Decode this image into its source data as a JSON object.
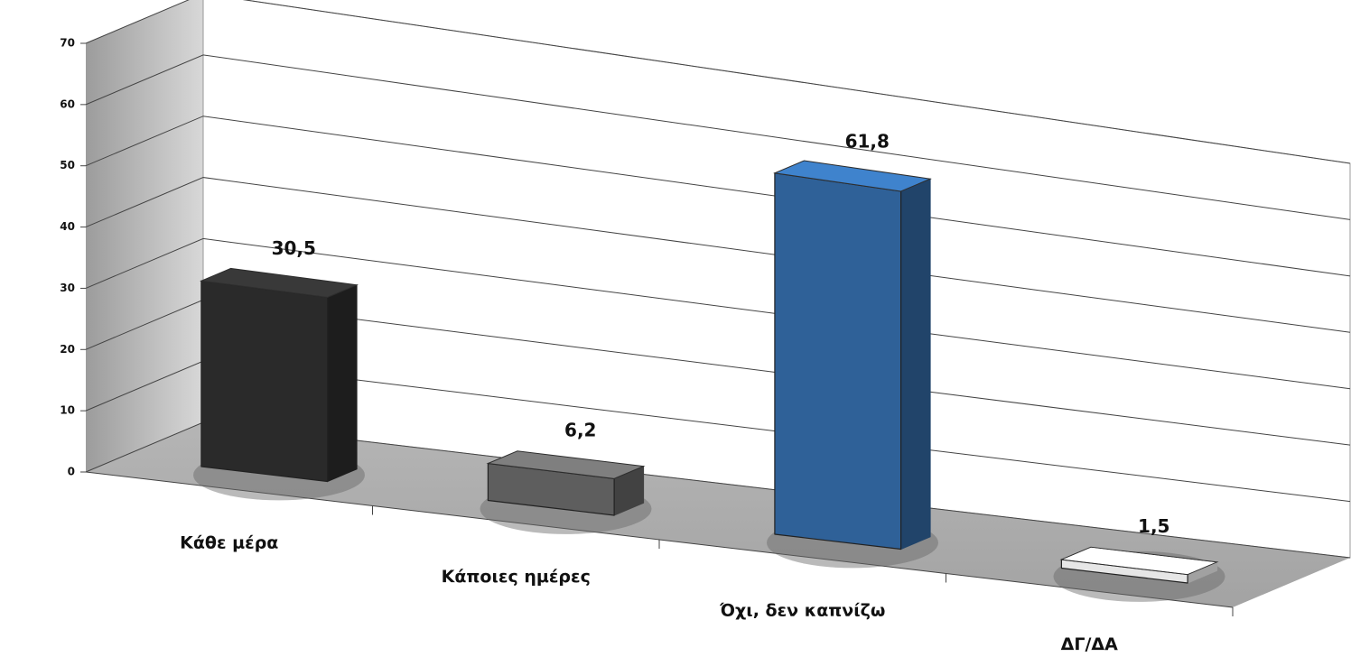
{
  "chart_data": {
    "type": "bar3d",
    "categories": [
      "Κάθε μέρα",
      "Κάποιες ημέρες",
      "Όχι, δεν καπνίζω",
      "ΔΓ/ΔΑ"
    ],
    "values": [
      30.5,
      6.2,
      61.8,
      1.5
    ],
    "value_labels": [
      "30,5",
      "6,2",
      "61,8",
      "1,5"
    ],
    "colors": [
      "#2a2a2a",
      "#5e5e5e",
      "#2f6198",
      "#e6e6e6"
    ],
    "ylim": [
      0,
      70
    ],
    "yticks": [
      0,
      10,
      20,
      30,
      40,
      50,
      60,
      70
    ],
    "grid": true
  }
}
